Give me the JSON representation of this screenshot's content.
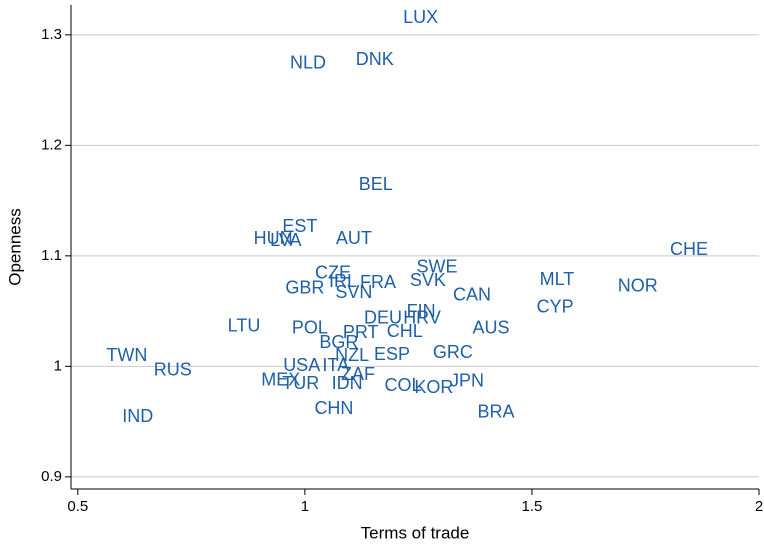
{
  "chart_data": {
    "type": "scatter",
    "xlabel": "Terms of trade",
    "ylabel": "Openness",
    "labels": [
      "LUX",
      "NLD",
      "DNK",
      "BEL",
      "EST",
      "HUN",
      "LVA",
      "AUT",
      "CHE",
      "CZE",
      "IRL",
      "FRA",
      "SWE",
      "SVK",
      "GBR",
      "SVN",
      "CAN",
      "MLT",
      "NOR",
      "CYP",
      "FIN",
      "DEU",
      "HRV",
      "AUS",
      "LTU",
      "POL",
      "PRT",
      "CHL",
      "BGR",
      "GRC",
      "NZL",
      "ESP",
      "USA",
      "ITA",
      "TWN",
      "RUS",
      "ZAF",
      "MEX",
      "TUR",
      "IDN",
      "JPN",
      "COL",
      "KOR",
      "CHN",
      "IND",
      "BRA"
    ],
    "x": [
      1.255,
      1.007,
      1.154,
      1.156,
      0.989,
      0.93,
      0.958,
      1.108,
      1.846,
      1.062,
      1.084,
      1.161,
      1.291,
      1.271,
      1.0,
      1.108,
      1.368,
      1.555,
      1.733,
      1.551,
      1.256,
      1.172,
      1.258,
      1.41,
      0.866,
      1.011,
      1.123,
      1.22,
      1.075,
      1.326,
      1.104,
      1.192,
      0.993,
      1.068,
      0.608,
      0.709,
      1.117,
      0.947,
      0.991,
      1.093,
      1.357,
      1.216,
      1.284,
      1.064,
      0.632,
      1.421
    ],
    "y": [
      1.315,
      1.274,
      1.277,
      1.164,
      1.126,
      1.115,
      1.113,
      1.115,
      1.105,
      1.084,
      1.076,
      1.075,
      1.089,
      1.077,
      1.07,
      1.066,
      1.064,
      1.078,
      1.072,
      1.053,
      1.049,
      1.043,
      1.043,
      1.034,
      1.036,
      1.034,
      1.03,
      1.031,
      1.021,
      1.012,
      1.009,
      1.01,
      1.0,
      1.0,
      1.009,
      0.996,
      0.992,
      0.987,
      0.984,
      0.984,
      0.986,
      0.982,
      0.98,
      0.961,
      0.954,
      0.958
    ],
    "color": "#1f5fa8",
    "xlim": [
      0.485,
      2.0
    ],
    "ylim": [
      0.889,
      1.327
    ],
    "xticks": [
      0.5,
      1,
      1.5,
      2
    ],
    "yticks": [
      0.9,
      1,
      1.1,
      1.2,
      1.3
    ],
    "grid": true
  }
}
